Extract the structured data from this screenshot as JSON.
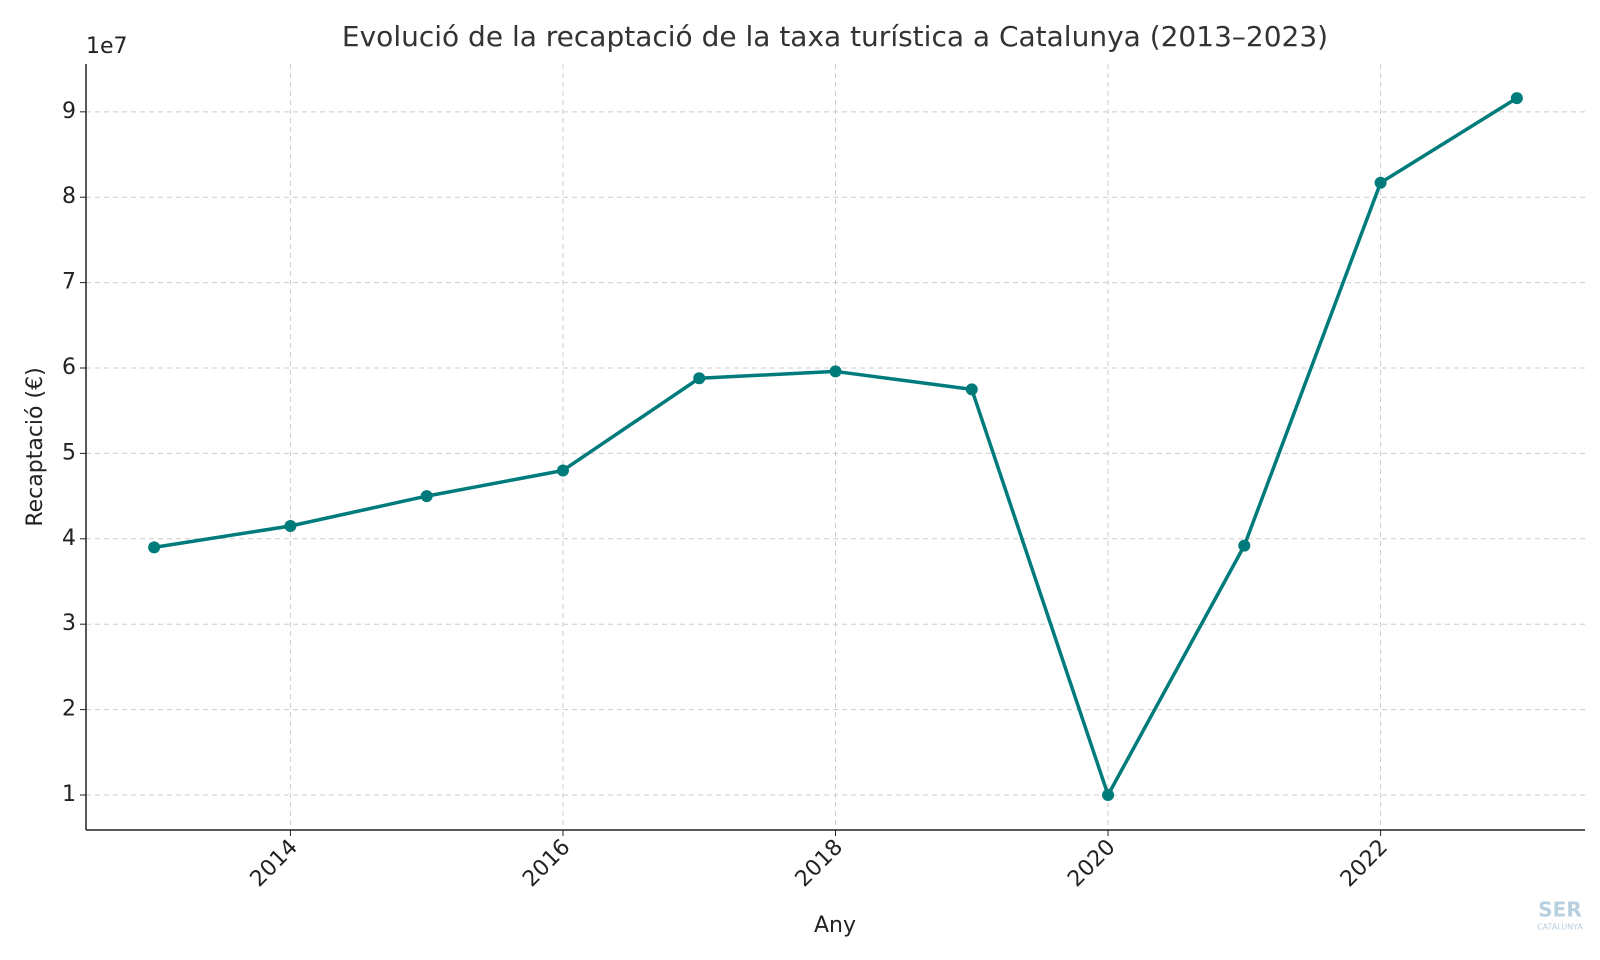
{
  "chart_data": {
    "type": "line",
    "title": "Evolució de la recaptació de la taxa turística a Catalunya (2013–2023)",
    "x_label": "Any",
    "y_label": "Recaptació (€)",
    "y_offset_label": "1e7",
    "x": [
      2013,
      2014,
      2015,
      2016,
      2017,
      2018,
      2019,
      2020,
      2021,
      2022,
      2023
    ],
    "series": [
      {
        "name": "Recaptació",
        "color": "#007b7b",
        "values": [
          39000000,
          41500000,
          45000000,
          48000000,
          58800000,
          59600000,
          57500000,
          10000000,
          39200000,
          81700000,
          91600000
        ]
      }
    ],
    "xlim": [
      2012.5,
      2023.5
    ],
    "xticks": [
      2014,
      2016,
      2018,
      2020,
      2022
    ],
    "ylim": [
      5900000,
      95600000
    ],
    "yticks": [
      {
        "value": 10000000,
        "label": "1"
      },
      {
        "value": 20000000,
        "label": "2"
      },
      {
        "value": 30000000,
        "label": "3"
      },
      {
        "value": 40000000,
        "label": "4"
      },
      {
        "value": 50000000,
        "label": "5"
      },
      {
        "value": 60000000,
        "label": "6"
      },
      {
        "value": 70000000,
        "label": "7"
      },
      {
        "value": 80000000,
        "label": "8"
      },
      {
        "value": 90000000,
        "label": "9"
      }
    ],
    "grid": true
  },
  "watermark": {
    "brand": "SER",
    "region": "CATALUNYA"
  }
}
